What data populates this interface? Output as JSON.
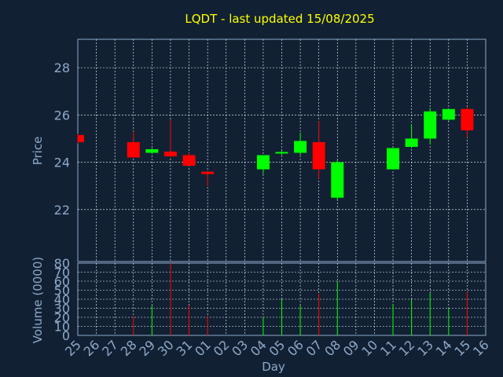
{
  "chart_data": {
    "title": "LQDT - last updated 15/08/2025",
    "xlabel": "Day",
    "price_panel": {
      "type": "candlestick",
      "ylabel": "Price",
      "ylim": [
        19.8,
        29.2
      ],
      "yticks": [
        "22",
        "24",
        "26",
        "28"
      ],
      "ytick_values": [
        22,
        24,
        26,
        28
      ]
    },
    "volume_panel": {
      "type": "bar",
      "ylabel": "Volume (0000)",
      "ylim": [
        0,
        80
      ],
      "yticks": [
        "0",
        "10",
        "20",
        "30",
        "40",
        "50",
        "60",
        "70",
        "80"
      ],
      "ytick_values": [
        0,
        10,
        20,
        30,
        40,
        50,
        60,
        70,
        80
      ]
    },
    "categories": [
      "25",
      "26",
      "27",
      "28",
      "29",
      "30",
      "31",
      "01",
      "02",
      "03",
      "04",
      "05",
      "06",
      "07",
      "08",
      "09",
      "10",
      "11",
      "12",
      "13",
      "14",
      "15",
      "16"
    ],
    "candles": [
      {
        "day": "25",
        "open": 25.15,
        "high": 25.2,
        "low": 24.8,
        "close": 24.85,
        "volume": 0
      },
      {
        "day": "28",
        "open": 24.85,
        "high": 25.3,
        "low": 24.2,
        "close": 24.2,
        "volume": 21
      },
      {
        "day": "29",
        "open": 24.4,
        "high": 24.6,
        "low": 24.35,
        "close": 24.55,
        "volume": 33
      },
      {
        "day": "30",
        "open": 24.45,
        "high": 25.8,
        "low": 24.2,
        "close": 24.25,
        "volume": 80
      },
      {
        "day": "31",
        "open": 24.3,
        "high": 24.4,
        "low": 23.85,
        "close": 23.85,
        "volume": 33
      },
      {
        "day": "01",
        "open": 23.6,
        "high": 23.6,
        "low": 23.0,
        "close": 23.5,
        "volume": 22
      },
      {
        "day": "04",
        "open": 23.7,
        "high": 24.3,
        "low": 23.5,
        "close": 24.3,
        "volume": 20
      },
      {
        "day": "05",
        "open": 24.35,
        "high": 24.5,
        "low": 24.3,
        "close": 24.4,
        "volume": 40
      },
      {
        "day": "06",
        "open": 24.4,
        "high": 25.25,
        "low": 24.3,
        "close": 24.9,
        "volume": 33
      },
      {
        "day": "07",
        "open": 24.85,
        "high": 25.75,
        "low": 23.3,
        "close": 23.7,
        "volume": 46
      },
      {
        "day": "08",
        "open": 22.5,
        "high": 24.1,
        "low": 22.4,
        "close": 24.0,
        "volume": 60
      },
      {
        "day": "11",
        "open": 23.7,
        "high": 24.6,
        "low": 23.7,
        "close": 24.6,
        "volume": 34
      },
      {
        "day": "12",
        "open": 24.65,
        "high": 25.6,
        "low": 24.6,
        "close": 25.0,
        "volume": 40
      },
      {
        "day": "13",
        "open": 25.0,
        "high": 26.3,
        "low": 24.75,
        "close": 26.15,
        "volume": 47
      },
      {
        "day": "14",
        "open": 25.8,
        "high": 26.25,
        "low": 25.75,
        "close": 26.25,
        "volume": 30
      },
      {
        "day": "15",
        "open": 26.25,
        "high": 26.35,
        "low": 25.05,
        "close": 25.35,
        "volume": 48
      }
    ],
    "colors": {
      "background": "#112133",
      "up": "#00ff00",
      "down": "#ff0000",
      "title": "#ffff00",
      "axis_text": "#8fa9c9",
      "grid": "#ffffff"
    }
  }
}
